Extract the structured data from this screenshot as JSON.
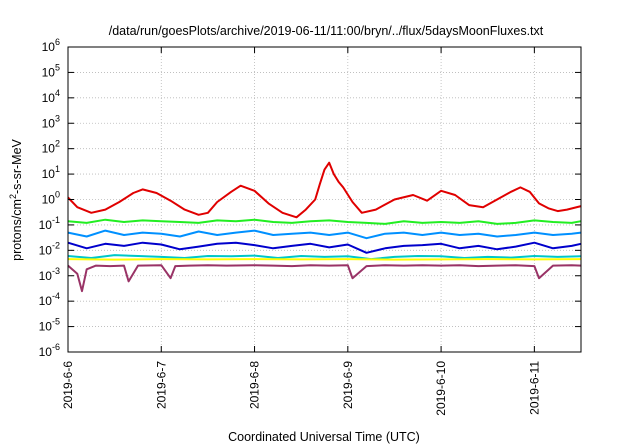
{
  "chart_data": {
    "type": "line",
    "title": "/data/run/goesPlots/archive/2019-06-11/11:00/bryn/../flux/5daysMoonFluxes.txt",
    "xlabel": "Coordinated Universal Time (UTC)",
    "ylabel": {
      "prefix": "protons/cm",
      "sup": "2",
      "suffix": "-s-sr-MeV"
    },
    "yscale": "log",
    "ylim_exponent": [
      -6,
      6
    ],
    "ytick_exponents": [
      -6,
      -5,
      -4,
      -3,
      -2,
      -1,
      0,
      1,
      2,
      3,
      4,
      5,
      6
    ],
    "ytick_base": "10",
    "xlim_days": [
      0,
      5.5
    ],
    "xticks": [
      {
        "day": 0,
        "label": "2019-6-6"
      },
      {
        "day": 1,
        "label": "2019-6-7"
      },
      {
        "day": 2,
        "label": "2019-6-8"
      },
      {
        "day": 3,
        "label": "2019-6-9"
      },
      {
        "day": 4,
        "label": "2019-6-10"
      },
      {
        "day": 5,
        "label": "2019-6-11"
      }
    ],
    "grid": true,
    "series": [
      {
        "color": "#e00000",
        "x": [
          0,
          0.1,
          0.25,
          0.4,
          0.55,
          0.7,
          0.8,
          0.95,
          1.1,
          1.25,
          1.4,
          1.5,
          1.6,
          1.75,
          1.85,
          2.0,
          2.15,
          2.3,
          2.45,
          2.55,
          2.65,
          2.7,
          2.75,
          2.8,
          2.85,
          2.9,
          2.95,
          3.05,
          3.15,
          3.3,
          3.5,
          3.7,
          3.85,
          4.0,
          4.15,
          4.3,
          4.45,
          4.6,
          4.75,
          4.85,
          4.95,
          5.05,
          5.15,
          5.25,
          5.35,
          5.5
        ],
        "y": [
          1.2,
          0.5,
          0.3,
          0.4,
          0.8,
          1.8,
          2.5,
          1.8,
          0.9,
          0.4,
          0.25,
          0.3,
          0.8,
          2.0,
          3.5,
          2.2,
          0.7,
          0.3,
          0.2,
          0.4,
          1.0,
          4.0,
          15,
          28,
          10,
          5,
          3,
          0.8,
          0.3,
          0.4,
          1.0,
          1.5,
          0.9,
          2.2,
          1.5,
          0.6,
          0.5,
          1.0,
          2.0,
          3.0,
          2.0,
          0.7,
          0.45,
          0.35,
          0.4,
          0.55
        ]
      },
      {
        "color": "#22ee22",
        "x": [
          0,
          0.2,
          0.4,
          0.6,
          0.8,
          1.0,
          1.2,
          1.4,
          1.6,
          1.8,
          2.0,
          2.2,
          2.4,
          2.6,
          2.8,
          3.0,
          3.2,
          3.4,
          3.6,
          3.8,
          4.0,
          4.2,
          4.4,
          4.6,
          4.8,
          5.0,
          5.2,
          5.4,
          5.5
        ],
        "y": [
          0.14,
          0.12,
          0.16,
          0.13,
          0.15,
          0.14,
          0.13,
          0.12,
          0.15,
          0.14,
          0.16,
          0.13,
          0.12,
          0.14,
          0.15,
          0.13,
          0.12,
          0.11,
          0.14,
          0.12,
          0.13,
          0.12,
          0.14,
          0.11,
          0.12,
          0.15,
          0.13,
          0.12,
          0.14
        ]
      },
      {
        "color": "#0090ff",
        "x": [
          0,
          0.2,
          0.4,
          0.6,
          0.8,
          1.0,
          1.2,
          1.4,
          1.6,
          1.8,
          2.0,
          2.2,
          2.4,
          2.6,
          2.8,
          3.0,
          3.2,
          3.4,
          3.6,
          3.8,
          4.0,
          4.2,
          4.4,
          4.6,
          4.8,
          5.0,
          5.2,
          5.4,
          5.5
        ],
        "y": [
          0.05,
          0.035,
          0.06,
          0.04,
          0.05,
          0.045,
          0.035,
          0.055,
          0.04,
          0.05,
          0.06,
          0.04,
          0.045,
          0.05,
          0.04,
          0.05,
          0.03,
          0.045,
          0.05,
          0.04,
          0.05,
          0.04,
          0.045,
          0.035,
          0.04,
          0.05,
          0.04,
          0.045,
          0.05
        ]
      },
      {
        "color": "#0000cc",
        "x": [
          0,
          0.2,
          0.4,
          0.6,
          0.8,
          1.0,
          1.2,
          1.4,
          1.6,
          1.8,
          2.0,
          2.2,
          2.4,
          2.6,
          2.8,
          3.0,
          3.2,
          3.4,
          3.6,
          3.8,
          4.0,
          4.2,
          4.4,
          4.6,
          4.8,
          5.0,
          5.2,
          5.4,
          5.5
        ],
        "y": [
          0.02,
          0.012,
          0.018,
          0.015,
          0.02,
          0.017,
          0.011,
          0.014,
          0.018,
          0.02,
          0.016,
          0.012,
          0.015,
          0.018,
          0.013,
          0.017,
          0.008,
          0.012,
          0.015,
          0.016,
          0.018,
          0.012,
          0.015,
          0.011,
          0.014,
          0.02,
          0.012,
          0.015,
          0.018
        ]
      },
      {
        "color": "#00c8c8",
        "x": [
          0,
          0.25,
          0.5,
          0.75,
          1.0,
          1.25,
          1.5,
          1.75,
          2.0,
          2.25,
          2.5,
          2.75,
          3.0,
          3.25,
          3.5,
          3.75,
          4.0,
          4.25,
          4.5,
          4.75,
          5.0,
          5.25,
          5.5
        ],
        "y": [
          0.006,
          0.005,
          0.0065,
          0.006,
          0.0055,
          0.005,
          0.006,
          0.0058,
          0.0062,
          0.005,
          0.006,
          0.0055,
          0.0058,
          0.0045,
          0.0055,
          0.006,
          0.0058,
          0.005,
          0.0055,
          0.0052,
          0.006,
          0.0055,
          0.0058
        ]
      },
      {
        "color": "#ffff00",
        "x": [
          0,
          0.5,
          1.0,
          1.5,
          2.0,
          2.5,
          3.0,
          3.5,
          4.0,
          4.5,
          5.0,
          5.5
        ],
        "y": [
          0.0045,
          0.0043,
          0.0045,
          0.0044,
          0.0045,
          0.0044,
          0.0045,
          0.0043,
          0.0044,
          0.0045,
          0.0044,
          0.0045
        ]
      },
      {
        "color": "#993366",
        "x": [
          0,
          0.1,
          0.15,
          0.2,
          0.3,
          0.45,
          0.6,
          0.65,
          0.75,
          1.0,
          1.1,
          1.15,
          1.3,
          1.5,
          1.7,
          2.0,
          2.2,
          2.4,
          2.6,
          2.8,
          3.0,
          3.05,
          3.2,
          3.4,
          3.6,
          3.8,
          4.0,
          4.2,
          4.4,
          4.6,
          4.8,
          5.0,
          5.05,
          5.2,
          5.4,
          5.5
        ],
        "y": [
          0.0025,
          0.0012,
          0.00025,
          0.0018,
          0.0025,
          0.0024,
          0.0025,
          0.0006,
          0.0025,
          0.0026,
          0.0008,
          0.0024,
          0.0025,
          0.0026,
          0.0025,
          0.0026,
          0.0025,
          0.0024,
          0.0026,
          0.0025,
          0.0026,
          0.0008,
          0.0024,
          0.0026,
          0.0025,
          0.0026,
          0.0025,
          0.0026,
          0.0024,
          0.0025,
          0.0026,
          0.0024,
          0.0008,
          0.0025,
          0.0026,
          0.0025
        ]
      }
    ]
  }
}
